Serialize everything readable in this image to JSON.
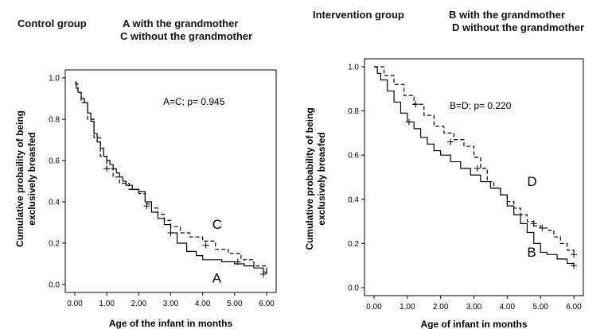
{
  "left_header": {
    "group": "Control group",
    "line1": "A with the grandmother",
    "line2": "C without the grandmother"
  },
  "right_header": {
    "group": "Intervention group",
    "line1": "B with the grandmother",
    "line2": "D without the grandmother"
  },
  "chart_data": [
    {
      "type": "line",
      "title": "",
      "xlabel": "Age of the infant in months",
      "ylabel_line1": "Cumulative probaility of being",
      "ylabel_line2": "exclusively breasfed",
      "annotation": "A=C; p= 0.945",
      "xlim": [
        0,
        6
      ],
      "ylim": [
        0,
        1
      ],
      "xticks": [
        "0.00",
        "1.00",
        "2.00",
        "3.00",
        "4.00",
        "5.00",
        "6.00"
      ],
      "yticks": [
        "0.0",
        "0.2",
        "0.4",
        "0.6",
        "0.8",
        "1.0"
      ],
      "series": [
        {
          "name": "A",
          "style": "solid",
          "x": [
            0,
            0.05,
            0.1,
            0.2,
            0.3,
            0.4,
            0.5,
            0.6,
            0.7,
            0.8,
            0.9,
            1.0,
            1.1,
            1.2,
            1.3,
            1.4,
            1.5,
            1.6,
            1.8,
            2.0,
            2.2,
            2.4,
            2.6,
            2.8,
            3.0,
            3.2,
            3.5,
            3.8,
            4.0,
            4.3,
            4.6,
            5.0,
            5.3,
            5.6,
            5.9,
            6.0
          ],
          "y": [
            0.98,
            0.95,
            0.93,
            0.9,
            0.88,
            0.83,
            0.79,
            0.73,
            0.69,
            0.66,
            0.62,
            0.6,
            0.58,
            0.56,
            0.54,
            0.52,
            0.5,
            0.48,
            0.46,
            0.45,
            0.4,
            0.35,
            0.32,
            0.29,
            0.25,
            0.2,
            0.16,
            0.14,
            0.12,
            0.12,
            0.11,
            0.1,
            0.09,
            0.08,
            0.06,
            0.05
          ]
        },
        {
          "name": "C",
          "style": "dashed",
          "x": [
            0,
            0.1,
            0.2,
            0.4,
            0.6,
            0.8,
            1.0,
            1.2,
            1.4,
            1.7,
            2.0,
            2.2,
            2.4,
            2.6,
            2.8,
            3.0,
            3.3,
            3.6,
            4.0,
            4.4,
            4.8,
            5.2,
            5.6,
            6.0
          ],
          "y": [
            0.97,
            0.93,
            0.88,
            0.8,
            0.71,
            0.62,
            0.56,
            0.52,
            0.49,
            0.46,
            0.44,
            0.39,
            0.37,
            0.34,
            0.31,
            0.28,
            0.25,
            0.23,
            0.21,
            0.17,
            0.15,
            0.12,
            0.09,
            0.05
          ]
        }
      ],
      "censor_marks": [
        [
          1.0,
          0.56
        ],
        [
          2.25,
          0.38
        ],
        [
          3.0,
          0.25
        ],
        [
          4.1,
          0.19
        ],
        [
          5.1,
          0.11
        ],
        [
          5.9,
          0.05
        ]
      ],
      "curve_labels": [
        {
          "text": "C",
          "x": 4.3,
          "y": 0.27
        },
        {
          "text": "A",
          "x": 4.3,
          "y": 0.01
        }
      ]
    },
    {
      "type": "line",
      "title": "",
      "xlabel": "Age of infant in months",
      "ylabel_line1": "Cumulative probability of being",
      "ylabel_line2": "exclusively breasfed",
      "annotation": "B=D; p= 0.220",
      "xlim": [
        0,
        6
      ],
      "ylim": [
        0,
        1
      ],
      "xticks": [
        "0.00",
        "1.00",
        "2.00",
        "3.00",
        "4.00",
        "5.00",
        "6.00"
      ],
      "yticks": [
        "0.0",
        "0.2",
        "0.4",
        "0.6",
        "0.8",
        "1.0"
      ],
      "series": [
        {
          "name": "B",
          "style": "solid",
          "x": [
            0,
            0.1,
            0.2,
            0.4,
            0.6,
            0.8,
            1.0,
            1.2,
            1.4,
            1.6,
            1.8,
            2.0,
            2.3,
            2.6,
            2.9,
            3.2,
            3.5,
            3.8,
            4.0,
            4.2,
            4.4,
            4.6,
            4.8,
            5.0,
            5.2,
            5.5,
            5.8,
            6.0
          ],
          "y": [
            1.0,
            0.97,
            0.94,
            0.89,
            0.84,
            0.79,
            0.75,
            0.72,
            0.68,
            0.65,
            0.62,
            0.6,
            0.57,
            0.54,
            0.51,
            0.48,
            0.45,
            0.42,
            0.37,
            0.33,
            0.29,
            0.25,
            0.2,
            0.16,
            0.15,
            0.13,
            0.11,
            0.1
          ]
        },
        {
          "name": "D",
          "style": "dashed",
          "x": [
            0,
            0.3,
            0.6,
            0.9,
            1.2,
            1.5,
            1.8,
            2.1,
            2.4,
            2.7,
            3.0,
            3.2,
            3.4,
            3.6,
            3.8,
            4.0,
            4.2,
            4.4,
            4.6,
            4.8,
            5.0,
            5.2,
            5.4,
            5.6,
            5.8,
            6.0
          ],
          "y": [
            1.0,
            0.96,
            0.92,
            0.87,
            0.83,
            0.78,
            0.73,
            0.7,
            0.67,
            0.64,
            0.59,
            0.54,
            0.48,
            0.45,
            0.42,
            0.39,
            0.36,
            0.33,
            0.3,
            0.28,
            0.27,
            0.26,
            0.23,
            0.2,
            0.17,
            0.15
          ]
        }
      ],
      "censor_marks": [
        [
          1.05,
          0.75
        ],
        [
          1.25,
          0.83
        ],
        [
          2.3,
          0.66
        ],
        [
          3.1,
          0.54
        ],
        [
          4.8,
          0.29
        ],
        [
          5.05,
          0.27
        ],
        [
          6.0,
          0.15
        ],
        [
          6.0,
          0.1
        ]
      ],
      "curve_labels": [
        {
          "text": "D",
          "x": 4.6,
          "y": 0.46
        },
        {
          "text": "B",
          "x": 4.6,
          "y": 0.14
        }
      ]
    }
  ]
}
